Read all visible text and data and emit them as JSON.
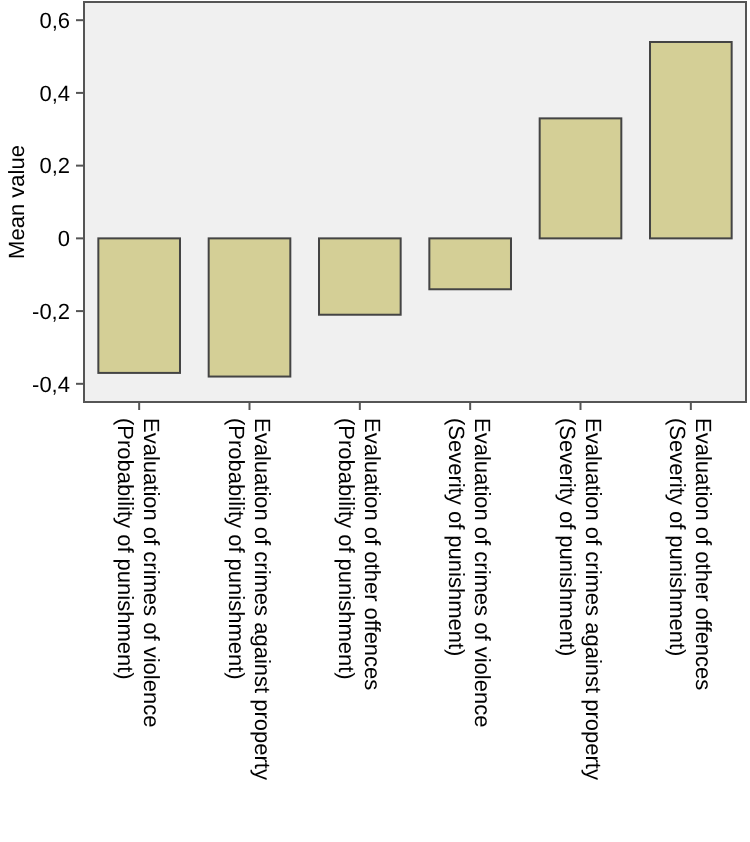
{
  "chart_data": {
    "type": "bar",
    "ylabel": "Mean value",
    "categories": [
      "Evaluation of crimes of violence\n(Probability of punishment)",
      "Evaluation of crimes against property\n(Probability of punishment)",
      "Evaluation of other offences\n(Probability of punishment)",
      "Evaluation of crimes of violence\n(Severity of punishment)",
      "Evaluation of crimes against property\n(Severity of punishment)",
      "Evaluation of other offences\n(Severity of punishment)"
    ],
    "values": [
      -0.37,
      -0.38,
      -0.21,
      -0.14,
      0.33,
      0.54
    ],
    "color": "#d4cf96",
    "ylim": [
      -0.45,
      0.65
    ],
    "yticks": [
      {
        "value": -0.4,
        "label": "-0,4"
      },
      {
        "value": -0.2,
        "label": "-0,2"
      },
      {
        "value": 0,
        "label": "0"
      },
      {
        "value": 0.2,
        "label": "0,2"
      },
      {
        "value": 0.4,
        "label": "0,4"
      },
      {
        "value": 0.6,
        "label": "0,6"
      }
    ],
    "grid": false
  }
}
